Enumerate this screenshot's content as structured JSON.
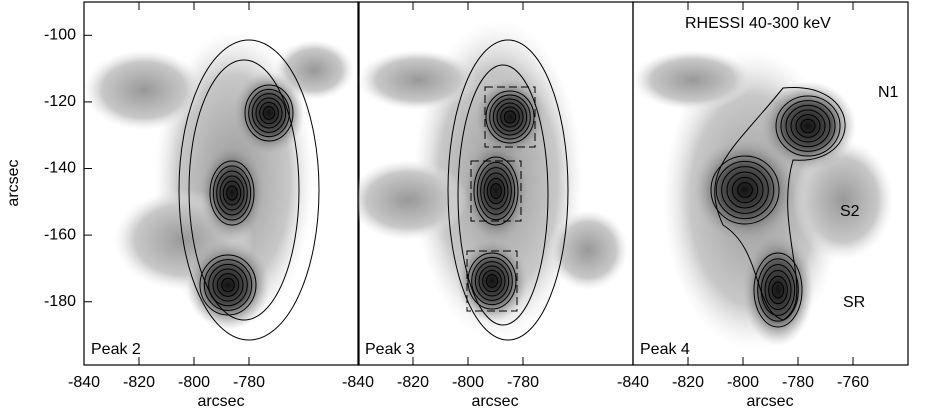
{
  "chart_data": [
    {
      "type": "image",
      "label": "Peak 2",
      "xlabel": "arcsec",
      "ylabel": "arcsec",
      "xlim": [
        -840,
        -740
      ],
      "xticks": [
        -840,
        -820,
        -800,
        -780
      ],
      "ylim": [
        -199,
        -90
      ],
      "yticks": [
        -180,
        -160,
        -140,
        -120,
        -100
      ]
    },
    {
      "type": "image",
      "label": "Peak 3",
      "xlabel": "arcsec",
      "xlim": [
        -840,
        -740
      ],
      "xticks": [
        -840,
        -820,
        -800,
        -780
      ],
      "ylim": [
        -199,
        -90
      ]
    },
    {
      "type": "image",
      "label": "Peak 4",
      "xlabel": "arcsec",
      "title": "RHESSI 40-300 keV",
      "annotations": [
        "N1",
        "S2",
        "SR"
      ],
      "xlim": [
        -840,
        -740
      ],
      "xticks": [
        -840,
        -820,
        -800,
        -780,
        -760
      ],
      "ylim": [
        -199,
        -90
      ]
    }
  ]
}
